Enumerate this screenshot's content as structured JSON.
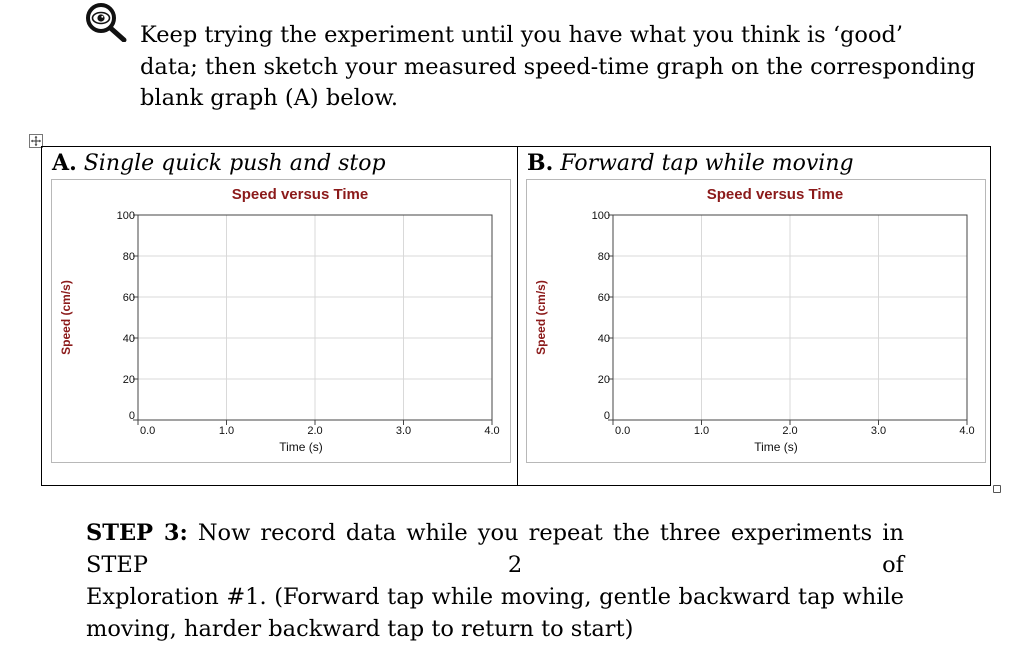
{
  "intro": {
    "icon": "magnifying-glass-eye-icon",
    "lines": [
      "Keep trying the experiment until you have what you think is ‘good’",
      "data; then sketch your measured speed-time graph on the corresponding",
      "blank graph (A) below."
    ]
  },
  "table": {
    "move_icon": "move-handle-icon",
    "resize_icon": "resize-handle-icon",
    "panels": [
      {
        "label": "A.",
        "title": "Single quick push and stop"
      },
      {
        "label": "B.",
        "title": "Forward tap while moving"
      }
    ]
  },
  "chart_data": [
    {
      "type": "line",
      "title": "Speed versus Time",
      "xlabel": "Time (s)",
      "ylabel": "Speed (cm/s)",
      "xlim": [
        0,
        4
      ],
      "ylim": [
        0,
        100
      ],
      "x_ticks": [
        0,
        1,
        2,
        3,
        4
      ],
      "x_tick_labels": [
        "0.0",
        "1.0",
        "2.0",
        "3.0",
        "4.0"
      ],
      "y_ticks": [
        0,
        20,
        40,
        60,
        80,
        100
      ],
      "y_tick_labels": [
        "0",
        "20",
        "40",
        "60",
        "80",
        "100"
      ],
      "grid": true,
      "series": [],
      "title_color": "#8b1a1a"
    },
    {
      "type": "line",
      "title": "Speed versus Time",
      "xlabel": "Time (s)",
      "ylabel": "Speed (cm/s)",
      "xlim": [
        0,
        4
      ],
      "ylim": [
        0,
        100
      ],
      "x_ticks": [
        0,
        1,
        2,
        3,
        4
      ],
      "x_tick_labels": [
        "0.0",
        "1.0",
        "2.0",
        "3.0",
        "4.0"
      ],
      "y_ticks": [
        0,
        20,
        40,
        60,
        80,
        100
      ],
      "y_tick_labels": [
        "0",
        "20",
        "40",
        "60",
        "80",
        "100"
      ],
      "grid": true,
      "series": [],
      "title_color": "#8b1a1a"
    }
  ],
  "step3": {
    "label": "STEP 3:",
    "lines": [
      "Now record data while you repeat the three experiments in STEP 2 of",
      "Exploration #1. (Forward tap while moving, gentle backward tap while",
      "moving, harder backward tap to return to start)"
    ]
  }
}
